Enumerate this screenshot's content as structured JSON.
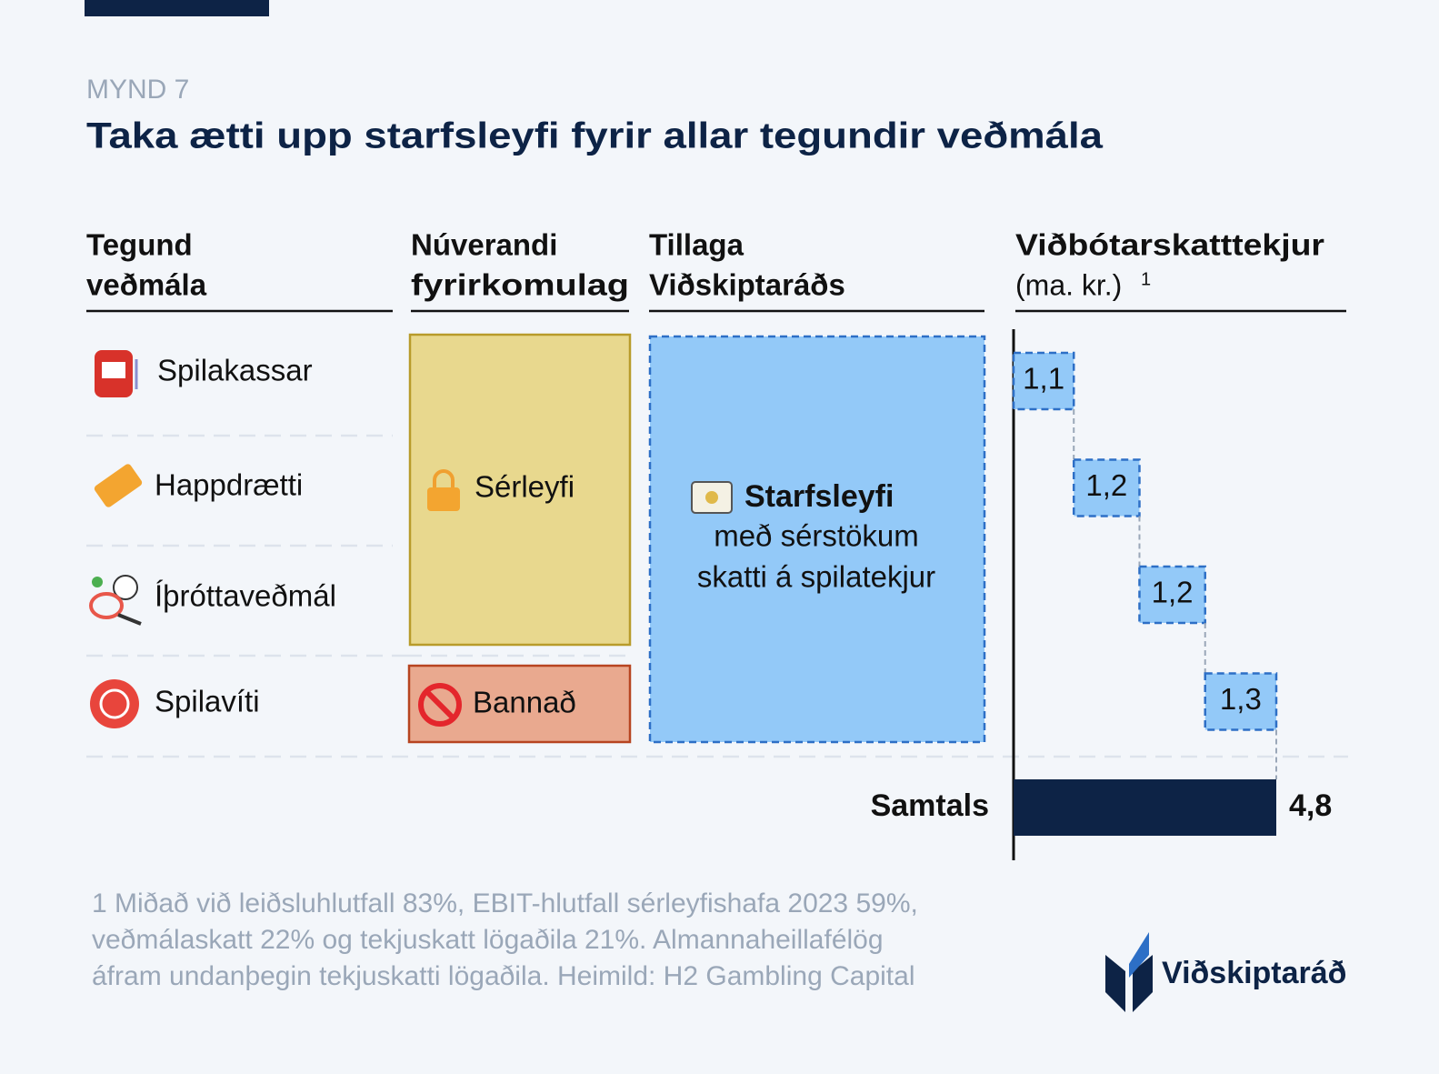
{
  "header": {
    "figure_label": "MYND 7",
    "title": "Taka ætti upp starfsleyfi fyrir allar tegundir veðmála"
  },
  "columns": {
    "type": [
      "Tegund",
      "veðmála"
    ],
    "current": [
      "Núverandi",
      "fyrirkomulag"
    ],
    "proposal": [
      "Tillaga",
      "Viðskiptaráðs"
    ]
  },
  "current_regime": {
    "licensed": "Sérleyfi",
    "banned": "Bannað"
  },
  "proposal": {
    "bold": "Starfsleyfi",
    "lines": [
      "með sérstökum",
      "skatti á spilatekjur"
    ]
  },
  "chart_data": {
    "type": "waterfall",
    "title": "Viðbótarskatttekjur",
    "subtitle": "(ma. kr.)",
    "note_mark": "1",
    "categories": [
      "Spilakassar",
      "Happdrætti",
      "Íþróttaveðmál",
      "Spilavíti"
    ],
    "values": [
      1.1,
      1.2,
      1.2,
      1.3
    ],
    "value_labels": [
      "1,1",
      "1,2",
      "1,2",
      "1,3"
    ],
    "total_name": "Samtals",
    "total": 4.8,
    "total_label": "4,8",
    "color": "#93c9f8",
    "total_color": "#0d2346",
    "xlim": [
      0,
      4.8
    ]
  },
  "footnote": [
    "1 Miðað við leiðsluhlutfall 83%, EBIT-hlutfall sérleyfishafa 2023 59%,",
    "veðmálaskatt 22% og tekjuskatt lögaðila 21%. Almannaheillafélög",
    "áfram undanþegin tekjuskatti lögaðila. Heimild: H2 Gambling Capital"
  ],
  "logo": "Viðskiptaráð"
}
